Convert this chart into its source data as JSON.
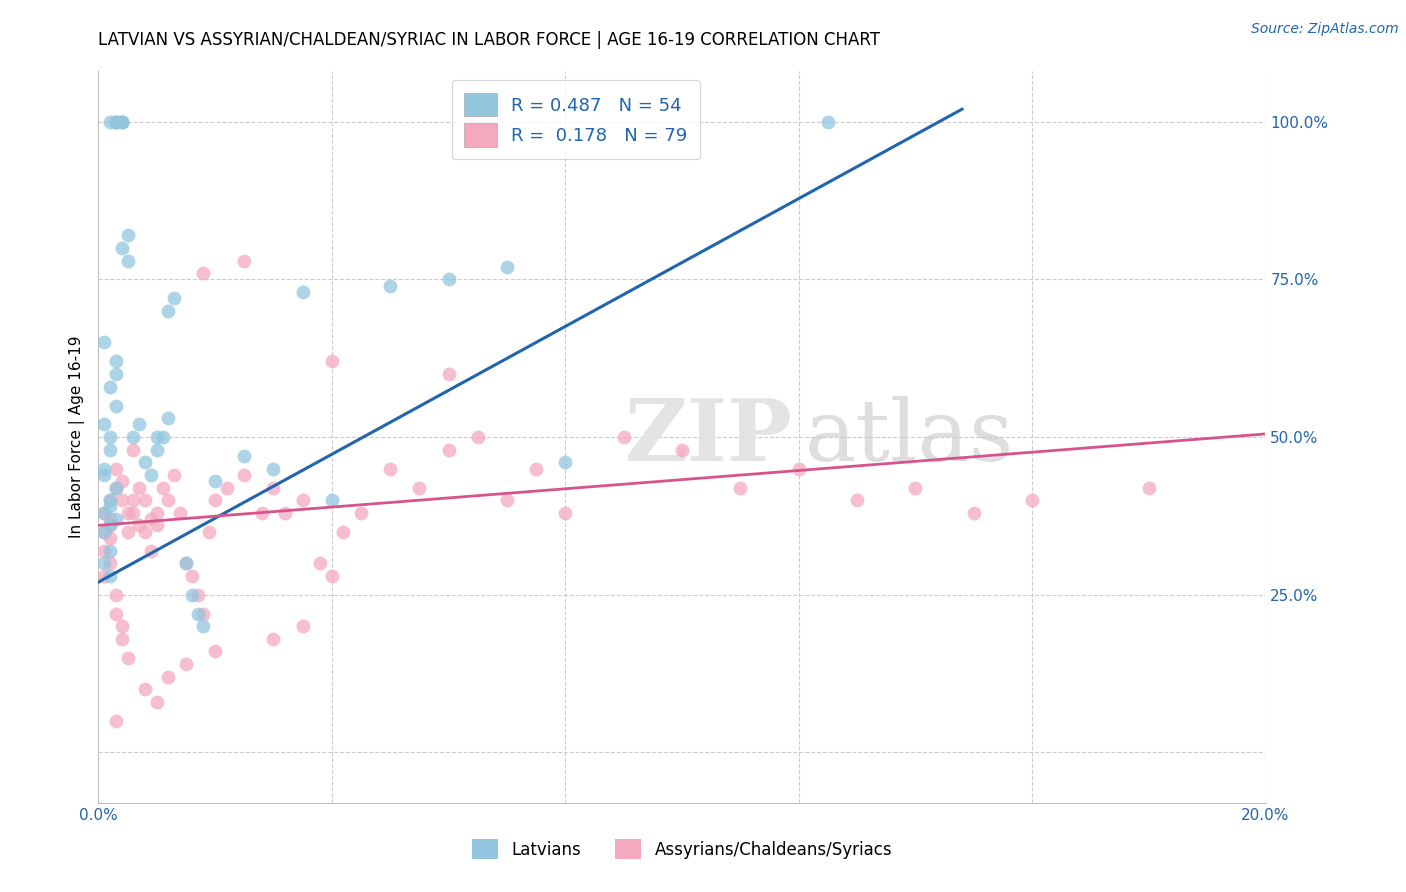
{
  "title": "LATVIAN VS ASSYRIAN/CHALDEAN/SYRIAC IN LABOR FORCE | AGE 16-19 CORRELATION CHART",
  "source": "Source: ZipAtlas.com",
  "ylabel": "In Labor Force | Age 16-19",
  "xmin": 0.0,
  "xmax": 0.2,
  "ymin": 0.0,
  "ymax": 1.0,
  "yticks": [
    0.0,
    0.25,
    0.5,
    0.75,
    1.0
  ],
  "ytick_labels": [
    "",
    "25.0%",
    "50.0%",
    "75.0%",
    "100.0%"
  ],
  "xticks": [
    0.0,
    0.04,
    0.08,
    0.12,
    0.16,
    0.2
  ],
  "xtick_labels": [
    "0.0%",
    "",
    "",
    "",
    "",
    "20.0%"
  ],
  "blue_R": 0.487,
  "blue_N": 54,
  "pink_R": 0.178,
  "pink_N": 79,
  "blue_label": "Latvians",
  "pink_label": "Assyrians/Chaldeans/Syriacs",
  "blue_color": "#92c5de",
  "pink_color": "#f4a9be",
  "blue_line_color": "#2166ac",
  "pink_line_color": "#d6548a",
  "watermark_zip": "ZIP",
  "watermark_atlas": "atlas",
  "blue_trend_x": [
    0.0,
    0.148
  ],
  "blue_trend_y": [
    0.27,
    1.02
  ],
  "pink_trend_x": [
    0.0,
    0.2
  ],
  "pink_trend_y": [
    0.36,
    0.505
  ],
  "blue_x": [
    0.001,
    0.002,
    0.002,
    0.003,
    0.003,
    0.001,
    0.002,
    0.001,
    0.002,
    0.001,
    0.002,
    0.001,
    0.002,
    0.003,
    0.002,
    0.001,
    0.003,
    0.001,
    0.002,
    0.003,
    0.003,
    0.004,
    0.002,
    0.003,
    0.004,
    0.003,
    0.004,
    0.005,
    0.004,
    0.005,
    0.006,
    0.007,
    0.008,
    0.009,
    0.01,
    0.011,
    0.012,
    0.012,
    0.013,
    0.015,
    0.016,
    0.017,
    0.018,
    0.02,
    0.025,
    0.03,
    0.035,
    0.04,
    0.05,
    0.06,
    0.07,
    0.08,
    0.125,
    0.01
  ],
  "blue_y": [
    0.38,
    0.4,
    0.36,
    0.42,
    0.37,
    0.44,
    0.39,
    0.35,
    0.32,
    0.3,
    0.28,
    0.45,
    0.5,
    0.55,
    0.48,
    0.52,
    0.6,
    0.65,
    0.58,
    0.62,
    1.0,
    1.0,
    1.0,
    1.0,
    1.0,
    1.0,
    1.0,
    0.82,
    0.8,
    0.78,
    0.5,
    0.52,
    0.46,
    0.44,
    0.48,
    0.5,
    0.53,
    0.7,
    0.72,
    0.3,
    0.25,
    0.22,
    0.2,
    0.43,
    0.47,
    0.45,
    0.73,
    0.4,
    0.74,
    0.75,
    0.77,
    0.46,
    1.0,
    0.5
  ],
  "pink_x": [
    0.001,
    0.001,
    0.001,
    0.001,
    0.002,
    0.002,
    0.002,
    0.002,
    0.002,
    0.003,
    0.003,
    0.003,
    0.003,
    0.004,
    0.004,
    0.004,
    0.004,
    0.005,
    0.005,
    0.005,
    0.006,
    0.006,
    0.006,
    0.007,
    0.007,
    0.008,
    0.008,
    0.009,
    0.009,
    0.01,
    0.01,
    0.011,
    0.012,
    0.013,
    0.014,
    0.015,
    0.016,
    0.017,
    0.018,
    0.019,
    0.02,
    0.022,
    0.025,
    0.028,
    0.03,
    0.032,
    0.035,
    0.038,
    0.04,
    0.042,
    0.045,
    0.05,
    0.055,
    0.06,
    0.065,
    0.07,
    0.075,
    0.08,
    0.09,
    0.1,
    0.11,
    0.12,
    0.13,
    0.14,
    0.15,
    0.16,
    0.018,
    0.025,
    0.04,
    0.06,
    0.008,
    0.01,
    0.012,
    0.015,
    0.02,
    0.03,
    0.035,
    0.18,
    0.003
  ],
  "pink_y": [
    0.38,
    0.35,
    0.32,
    0.28,
    0.4,
    0.37,
    0.36,
    0.3,
    0.34,
    0.42,
    0.25,
    0.22,
    0.45,
    0.2,
    0.18,
    0.4,
    0.43,
    0.15,
    0.38,
    0.35,
    0.4,
    0.38,
    0.48,
    0.36,
    0.42,
    0.35,
    0.4,
    0.37,
    0.32,
    0.36,
    0.38,
    0.42,
    0.4,
    0.44,
    0.38,
    0.3,
    0.28,
    0.25,
    0.22,
    0.35,
    0.4,
    0.42,
    0.44,
    0.38,
    0.42,
    0.38,
    0.4,
    0.3,
    0.28,
    0.35,
    0.38,
    0.45,
    0.42,
    0.48,
    0.5,
    0.4,
    0.45,
    0.38,
    0.5,
    0.48,
    0.42,
    0.45,
    0.4,
    0.42,
    0.38,
    0.4,
    0.76,
    0.78,
    0.62,
    0.6,
    0.1,
    0.08,
    0.12,
    0.14,
    0.16,
    0.18,
    0.2,
    0.42,
    0.05
  ]
}
